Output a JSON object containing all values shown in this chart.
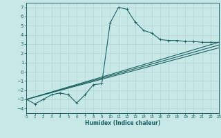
{
  "xlabel": "Humidex (Indice chaleur)",
  "ylabel": "",
  "bg_color": "#c8e8e8",
  "grid_color": "#b0d4d4",
  "line_color": "#1a6060",
  "x_min": 0,
  "x_max": 23,
  "y_min": -4.5,
  "y_max": 7.5,
  "yticks": [
    -4,
    -3,
    -2,
    -1,
    0,
    1,
    2,
    3,
    4,
    5,
    6,
    7
  ],
  "xticks": [
    0,
    1,
    2,
    3,
    4,
    5,
    6,
    7,
    8,
    9,
    10,
    11,
    12,
    13,
    14,
    15,
    16,
    17,
    18,
    19,
    20,
    21,
    22,
    23
  ],
  "series1_x": [
    0,
    1,
    2,
    3,
    4,
    5,
    6,
    7,
    8,
    9,
    10,
    11,
    12,
    13,
    14,
    15,
    16,
    17,
    18,
    19,
    20,
    21,
    22,
    23
  ],
  "series1_y": [
    -3.0,
    -3.5,
    -3.0,
    -2.5,
    -2.3,
    -2.5,
    -3.4,
    -2.5,
    -1.4,
    -1.3,
    5.3,
    7.0,
    6.8,
    5.4,
    4.5,
    4.2,
    3.5,
    3.4,
    3.4,
    3.3,
    3.3,
    3.2,
    3.2,
    3.2
  ],
  "series2_x": [
    0,
    23
  ],
  "series2_y": [
    -3.0,
    3.2
  ],
  "series3_x": [
    0,
    23
  ],
  "series3_y": [
    -3.0,
    2.6
  ],
  "series4_x": [
    0,
    23
  ],
  "series4_y": [
    -3.0,
    2.9
  ]
}
